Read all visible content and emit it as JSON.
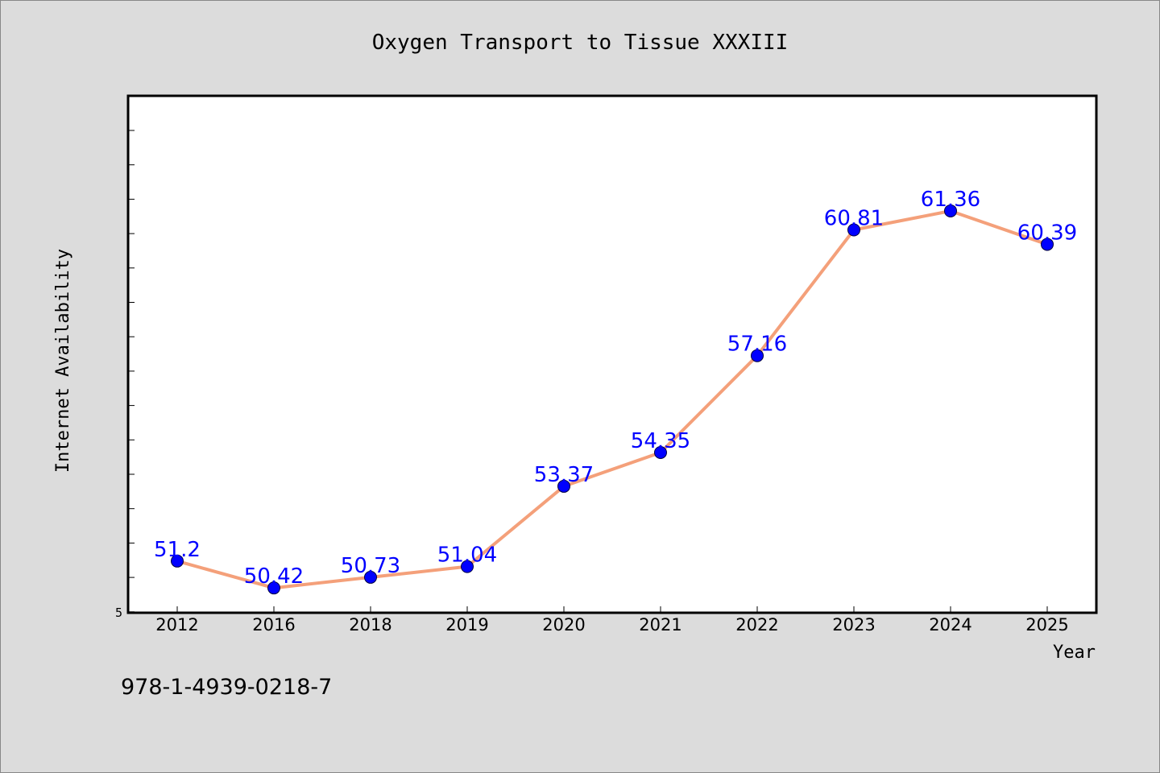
{
  "chart_data": {
    "type": "line",
    "title": "Oxygen Transport to Tissue XXXIII",
    "xlabel": "Year",
    "ylabel": "Internet Availability",
    "categories": [
      "2012",
      "2016",
      "2018",
      "2019",
      "2020",
      "2021",
      "2022",
      "2023",
      "2024",
      "2025"
    ],
    "values": [
      51.2,
      50.42,
      50.73,
      51.04,
      53.37,
      54.35,
      57.16,
      60.81,
      61.36,
      60.39
    ],
    "data_labels": [
      "51.2",
      "50.42",
      "50.73",
      "51.04",
      "53.37",
      "54.35",
      "57.16",
      "60.81",
      "61.36",
      "60.39"
    ],
    "ylim": [
      49.7,
      64.7
    ],
    "y_tick_labels": [
      "5"
    ],
    "grid": false,
    "colors": {
      "line": "#f4a07a",
      "marker": "#0000ff",
      "label": "#0000ff",
      "background": "#dcdcdc",
      "plot": "#ffffff"
    }
  },
  "footer": {
    "isbn": "978-1-4939-0218-7"
  }
}
